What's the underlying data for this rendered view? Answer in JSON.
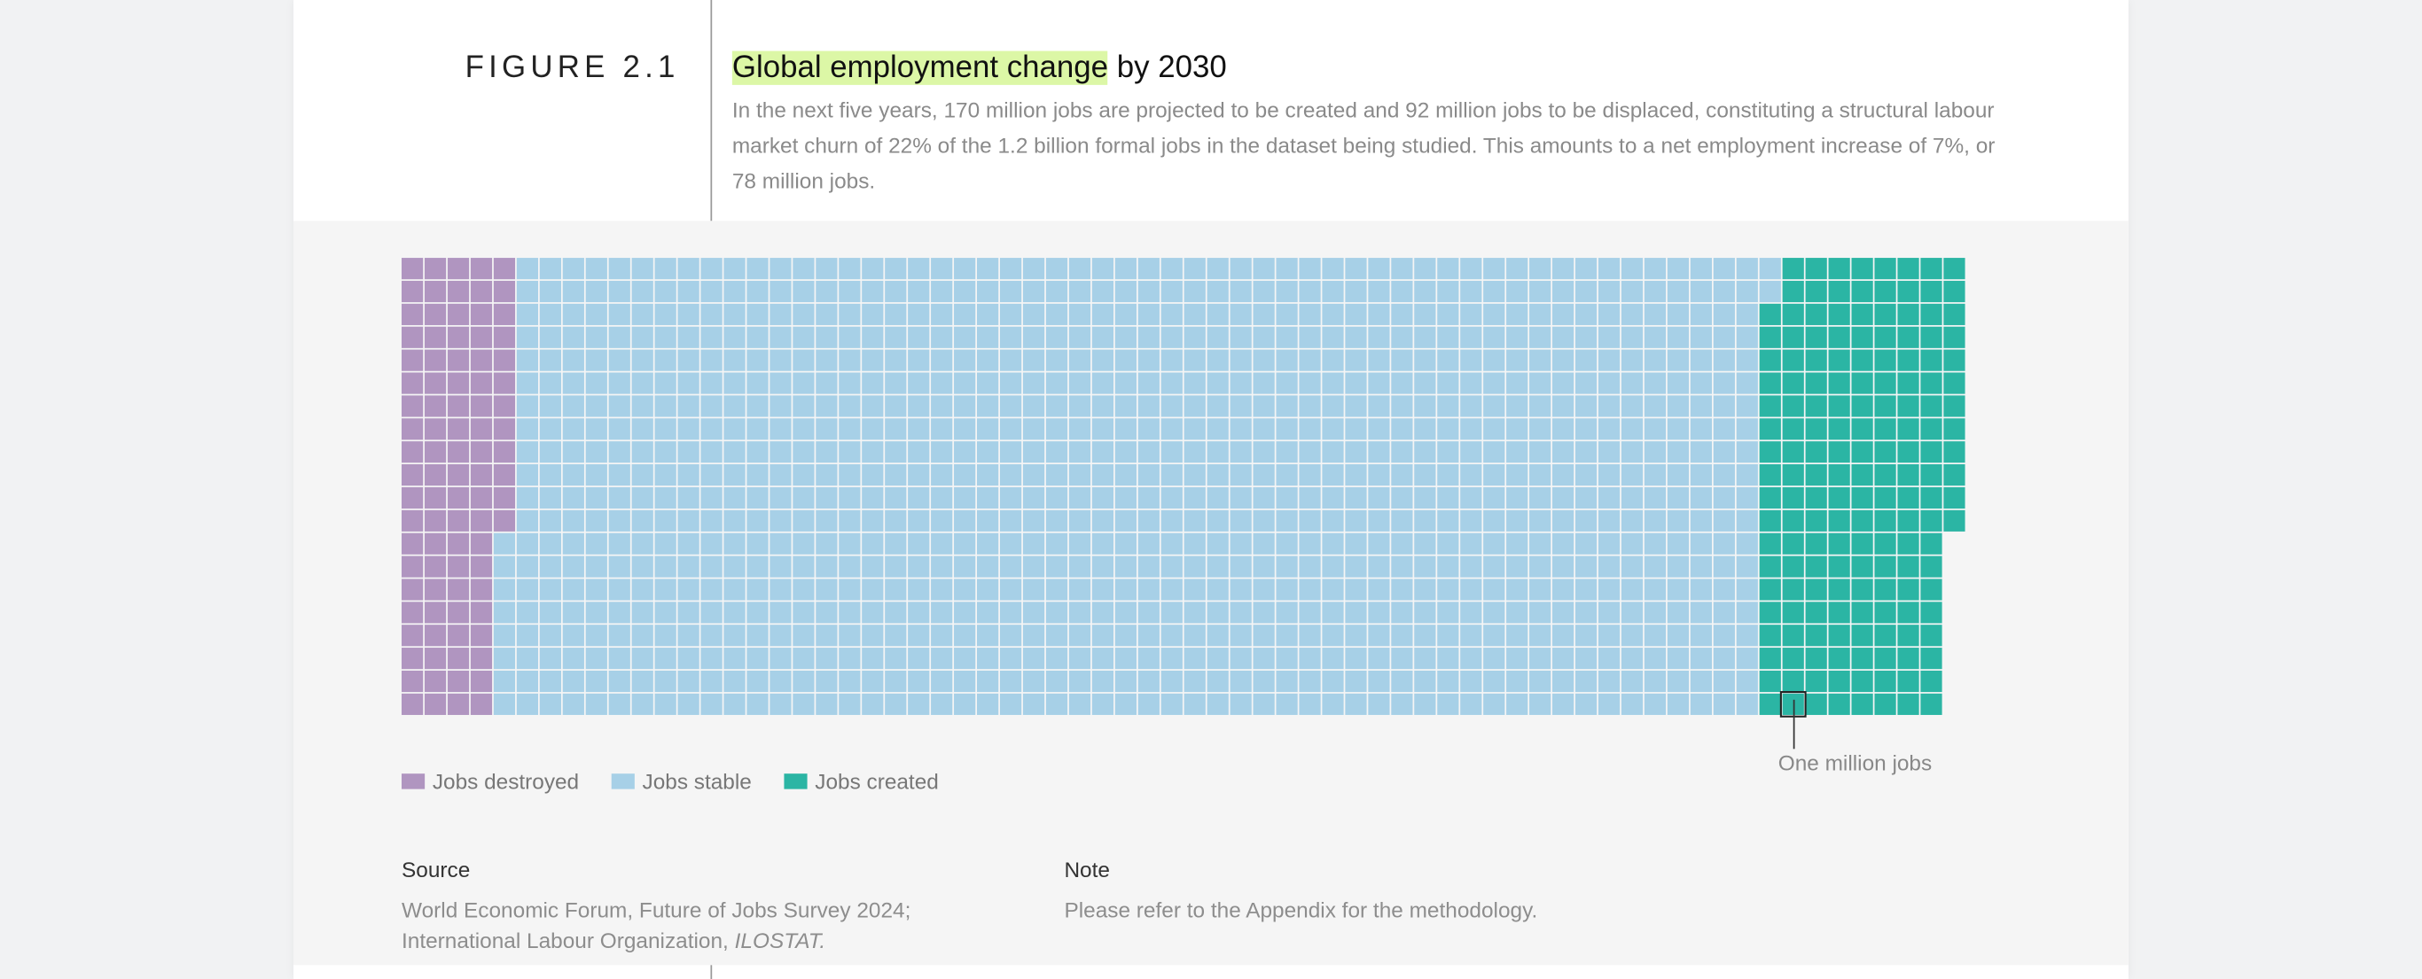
{
  "chart_data": {
    "type": "waffle",
    "figure_label": "FIGURE 2.1",
    "title_highlight": "Global employment change",
    "title_rest": "by 2030",
    "subtitle": "In the next five years, 170 million jobs are projected to be created and 92 million jobs to be displaced, constituting a structural labour market churn of 22% of the 1.2 billion formal jobs in the dataset being studied. This amounts to a net employment increase of 7%, or 78 million jobs.",
    "series": [
      {
        "name": "Jobs destroyed",
        "color": "#b095c0",
        "values": [
          92
        ]
      },
      {
        "name": "Jobs stable",
        "color": "#a7d0e7",
        "values": [
          1090
        ]
      },
      {
        "name": "Jobs created",
        "color": "#2bb5a4",
        "values": [
          170
        ]
      }
    ],
    "annotation": "One million jobs"
  },
  "footer": {
    "source_label": "Source",
    "source_text": "World Economic Forum, Future of Jobs Survey 2024; International Labour Organization,",
    "source_italic": "ILOSTAT.",
    "note_label": "Note",
    "note_text": "Please refer to the Appendix for the methodology."
  }
}
